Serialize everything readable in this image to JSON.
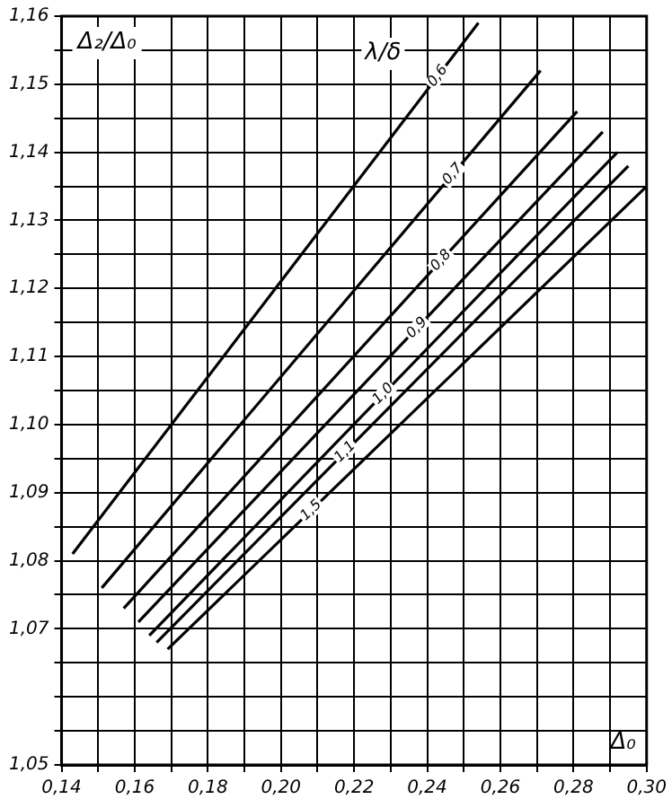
{
  "chart_data": {
    "type": "line",
    "xlabel": "Δ₀",
    "ylabel": "Δ₂/Δ₀",
    "legend_title": "λ/δ",
    "xlim": [
      0.14,
      0.3
    ],
    "ylim": [
      1.05,
      1.16
    ],
    "xticks": [
      {
        "value": 0.14,
        "label": "0,14"
      },
      {
        "value": 0.15,
        "label": null
      },
      {
        "value": 0.16,
        "label": "0,16"
      },
      {
        "value": 0.17,
        "label": null
      },
      {
        "value": 0.18,
        "label": "0,18"
      },
      {
        "value": 0.19,
        "label": null
      },
      {
        "value": 0.2,
        "label": "0,20"
      },
      {
        "value": 0.21,
        "label": null
      },
      {
        "value": 0.22,
        "label": "0,22"
      },
      {
        "value": 0.23,
        "label": null
      },
      {
        "value": 0.24,
        "label": "0,24"
      },
      {
        "value": 0.25,
        "label": null
      },
      {
        "value": 0.26,
        "label": "0,26"
      },
      {
        "value": 0.27,
        "label": null
      },
      {
        "value": 0.28,
        "label": "0,28"
      },
      {
        "value": 0.29,
        "label": null
      },
      {
        "value": 0.3,
        "label": "0,30"
      }
    ],
    "yticks": [
      {
        "value": 1.05,
        "label": "1,05"
      },
      {
        "value": 1.055,
        "label": null
      },
      {
        "value": 1.06,
        "label": null
      },
      {
        "value": 1.065,
        "label": null
      },
      {
        "value": 1.07,
        "label": "1,07"
      },
      {
        "value": 1.075,
        "label": null
      },
      {
        "value": 1.08,
        "label": "1,08"
      },
      {
        "value": 1.085,
        "label": null
      },
      {
        "value": 1.09,
        "label": "1,09"
      },
      {
        "value": 1.095,
        "label": null
      },
      {
        "value": 1.1,
        "label": "1,10"
      },
      {
        "value": 1.105,
        "label": null
      },
      {
        "value": 1.11,
        "label": "1,11"
      },
      {
        "value": 1.115,
        "label": null
      },
      {
        "value": 1.12,
        "label": "1,12"
      },
      {
        "value": 1.125,
        "label": null
      },
      {
        "value": 1.13,
        "label": "1,13"
      },
      {
        "value": 1.135,
        "label": null
      },
      {
        "value": 1.14,
        "label": "1,14"
      },
      {
        "value": 1.145,
        "label": null
      },
      {
        "value": 1.15,
        "label": "1,15"
      },
      {
        "value": 1.155,
        "label": null
      },
      {
        "value": 1.16,
        "label": "1,16"
      }
    ],
    "grid": true,
    "legend": false,
    "marker": "none",
    "line_style": "solid",
    "series": [
      {
        "name": "0,6",
        "color": "#000000",
        "x": [
          0.143,
          0.254
        ],
        "values": [
          1.081,
          1.159
        ]
      },
      {
        "name": "0,7",
        "color": "#000000",
        "x": [
          0.151,
          0.271
        ],
        "values": [
          1.076,
          1.152
        ]
      },
      {
        "name": "0,8",
        "color": "#000000",
        "x": [
          0.157,
          0.281
        ],
        "values": [
          1.073,
          1.146
        ]
      },
      {
        "name": "0,9",
        "color": "#000000",
        "x": [
          0.161,
          0.288
        ],
        "values": [
          1.071,
          1.143
        ]
      },
      {
        "name": "1,0",
        "color": "#000000",
        "x": [
          0.164,
          0.292
        ],
        "values": [
          1.069,
          1.14
        ]
      },
      {
        "name": "1,1",
        "color": "#000000",
        "x": [
          0.166,
          0.295
        ],
        "values": [
          1.068,
          1.138
        ]
      },
      {
        "name": "1,5",
        "color": "#000000",
        "x": [
          0.169,
          0.3
        ],
        "values": [
          1.067,
          1.135
        ]
      }
    ]
  }
}
